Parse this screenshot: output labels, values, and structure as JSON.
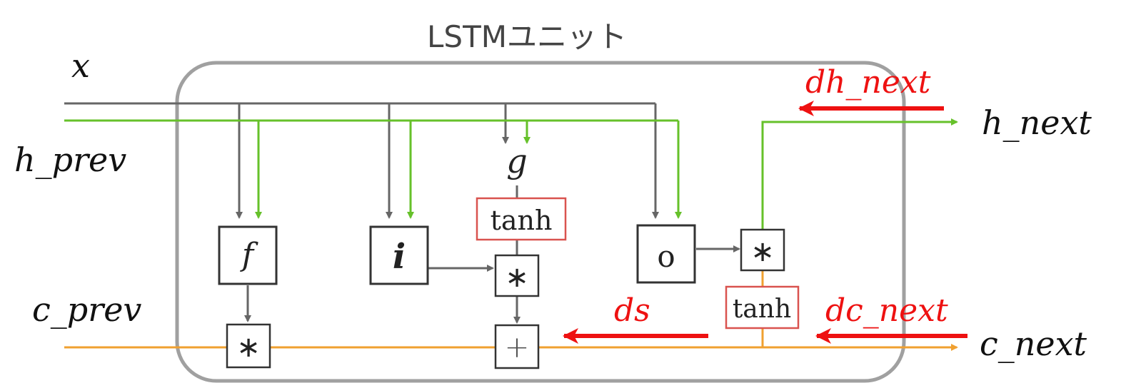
{
  "title": "LSTMユニット",
  "inputs": {
    "x": "x",
    "h_prev": "h_prev",
    "c_prev": "c_prev"
  },
  "outputs": {
    "h_next": "h_next",
    "c_next": "c_next"
  },
  "gates": {
    "f": "f",
    "i": "i",
    "g": "g",
    "o": "o"
  },
  "ops": {
    "mul": "∗",
    "add": "+",
    "tanh": "tanh"
  },
  "gradients": {
    "dh_next": "dh_next",
    "dc_next": "dc_next",
    "ds": "ds"
  },
  "colors": {
    "x_line": "#666666",
    "h_line": "#66c12a",
    "c_line": "#f0a030",
    "gradient": "#ee1111",
    "tanh_box": "#d9534f",
    "unit_border": "#a0a0a0",
    "node_border": "#333333"
  }
}
